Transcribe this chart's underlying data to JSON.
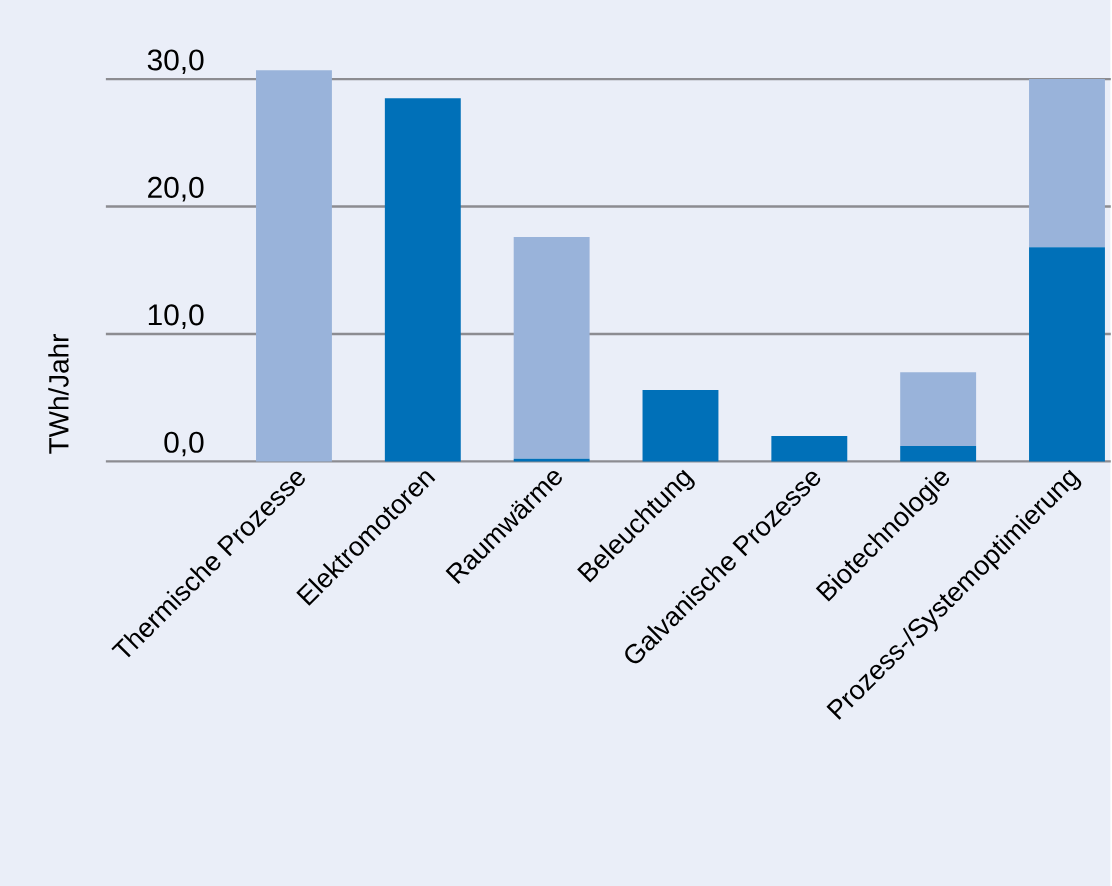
{
  "chart_data": {
    "type": "bar",
    "stacked": true,
    "ylabel": "TWh/Jahr",
    "categories": [
      "Thermische Prozesse",
      "Elektromotoren",
      "Raumwärme",
      "Beleuchtung",
      "Galvanische Prozesse",
      "Biotechnologie",
      "Prozess-/Systemoptimierung"
    ],
    "series": [
      {
        "color": "#0070b8",
        "values": [
          0,
          28.5,
          0.2,
          5.6,
          2.0,
          1.2,
          16.8
        ]
      },
      {
        "color": "#99b3da",
        "values": [
          30.7,
          0,
          17.4,
          0,
          0,
          5.8,
          13.2
        ]
      }
    ],
    "yticks": [
      {
        "value": 0,
        "label": "0,0"
      },
      {
        "value": 10,
        "label": "10,0"
      },
      {
        "value": 20,
        "label": "20,0"
      },
      {
        "value": 30,
        "label": "30,0"
      }
    ],
    "ylim": [
      0,
      30.7
    ],
    "grid": "y"
  }
}
